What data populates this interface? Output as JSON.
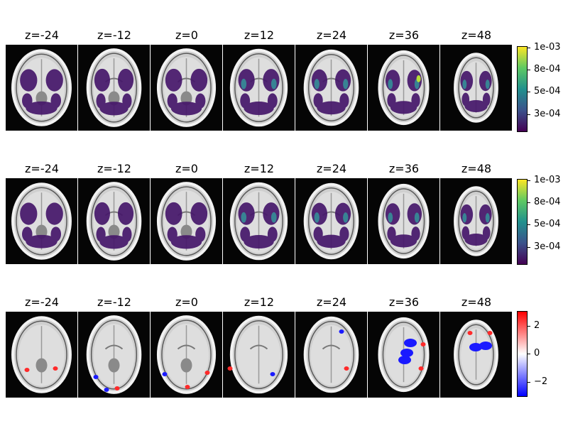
{
  "rows": [
    {
      "id": "row-1",
      "slices": [
        "z=-24",
        "z=-12",
        "z=0",
        "z=12",
        "z=24",
        "z=36",
        "z=48"
      ],
      "colorbar": {
        "colormap": "viridis",
        "colors": [
          "#440154",
          "#3b528b",
          "#21908d",
          "#5dc963",
          "#fde725"
        ],
        "tick_labels": [
          "1e-03",
          "8e-04",
          "5e-04",
          "3e-04"
        ]
      }
    },
    {
      "id": "row-2",
      "slices": [
        "z=-24",
        "z=-12",
        "z=0",
        "z=12",
        "z=24",
        "z=36",
        "z=48"
      ],
      "colorbar": {
        "colormap": "viridis",
        "colors": [
          "#440154",
          "#3b528b",
          "#21908d",
          "#5dc963",
          "#fde725"
        ],
        "tick_labels": [
          "1e-03",
          "8e-04",
          "5e-04",
          "3e-04"
        ]
      }
    },
    {
      "id": "row-3",
      "slices": [
        "z=-24",
        "z=-12",
        "z=0",
        "z=12",
        "z=24",
        "z=36",
        "z=48"
      ],
      "colorbar": {
        "colormap": "bwr",
        "colors": [
          "#0000ff",
          "#ffffff",
          "#ff0000"
        ],
        "tick_labels": [
          "2",
          "0",
          "−2"
        ]
      }
    }
  ],
  "overlay_colors": {
    "density_low": "#46176a",
    "density_mid": "#2a7c8e",
    "density_high": "#b5de2b",
    "positive": "#ff2a2a",
    "negative": "#1a1aff"
  }
}
